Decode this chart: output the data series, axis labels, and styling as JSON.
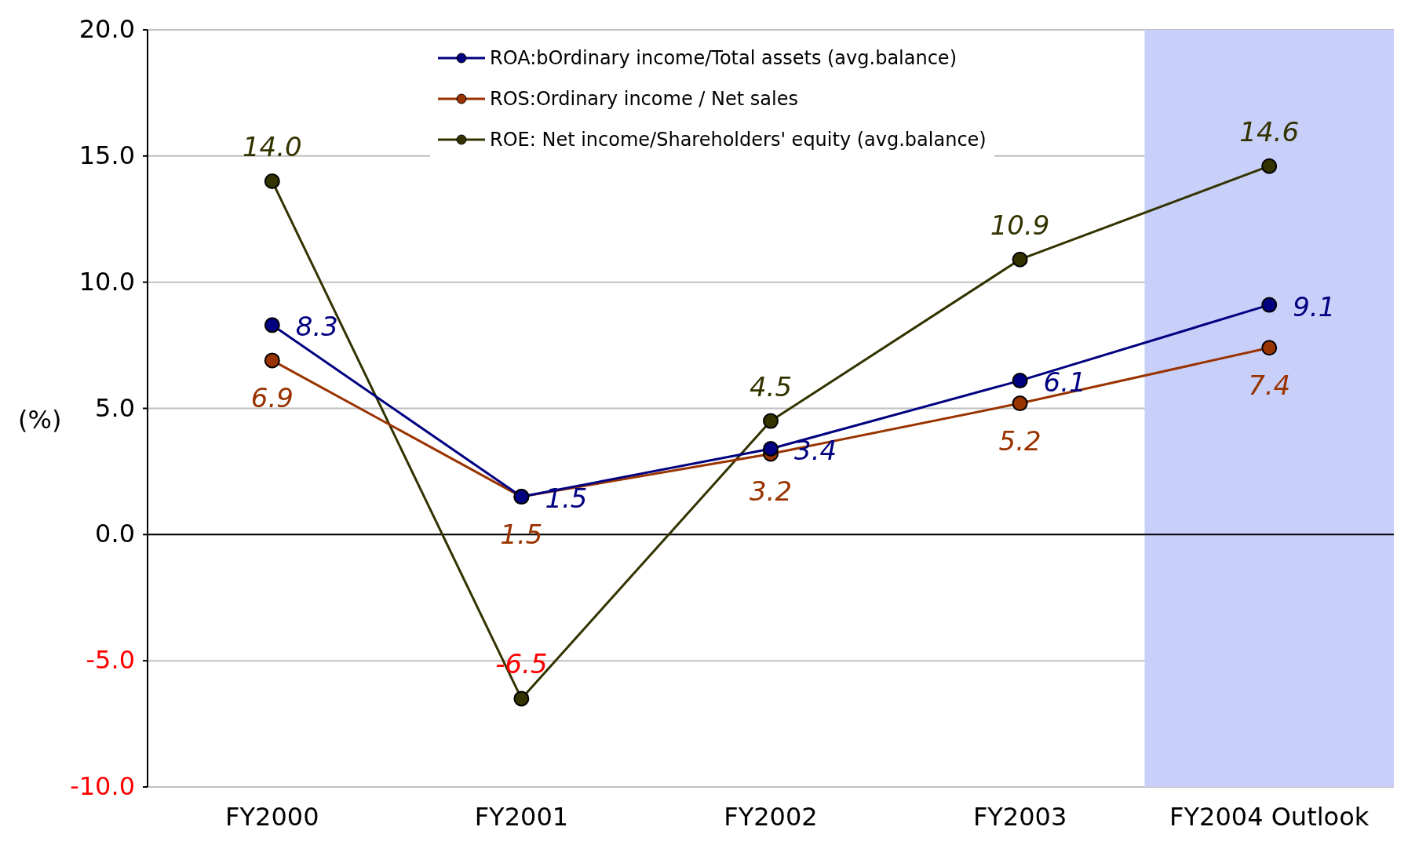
{
  "chart_data": {
    "type": "line",
    "ylabel": "(%)",
    "categories": [
      "FY2000",
      "FY2001",
      "FY2002",
      "FY2003",
      "FY2004 Outlook"
    ],
    "series": [
      {
        "name": "ROA:bOrdinary income/Total assets (avg.balance)",
        "color": "#000080",
        "values": [
          8.3,
          1.5,
          3.4,
          6.1,
          9.1
        ],
        "value_labels": [
          "8.3",
          "1.5",
          "3.4",
          "6.1",
          "9.1"
        ]
      },
      {
        "name": "ROS:Ordinary income / Net sales",
        "color": "#993300",
        "values": [
          6.9,
          1.5,
          3.2,
          5.2,
          7.4
        ],
        "value_labels": [
          "6.9",
          "1.5",
          "3.2",
          "5.2",
          "7.4"
        ]
      },
      {
        "name": "ROE: Net income/Shareholders' equity (avg.balance)",
        "color": "#333300",
        "values": [
          14.0,
          -6.5,
          4.5,
          10.9,
          14.6
        ],
        "value_labels": [
          "14.0",
          "-6.5",
          "4.5",
          "10.9",
          "14.6"
        ]
      }
    ],
    "ylim": [
      -10,
      20
    ],
    "yticks": [
      {
        "value": -10,
        "label": "-10.0"
      },
      {
        "value": -5,
        "label": "-5.0"
      },
      {
        "value": 0,
        "label": "0.0"
      },
      {
        "value": 5,
        "label": "5.0"
      },
      {
        "value": 10,
        "label": "10.0"
      },
      {
        "value": 15,
        "label": "15.0"
      },
      {
        "value": 20,
        "label": "20.0"
      }
    ],
    "grid": "y",
    "legend": "top",
    "marker": "circle",
    "line_style": "solid",
    "bands": [
      {
        "axis": "x",
        "from": "FY2004 Outlook",
        "to": "FY2004 Outlook",
        "color": "#c8d0fa"
      }
    ]
  }
}
